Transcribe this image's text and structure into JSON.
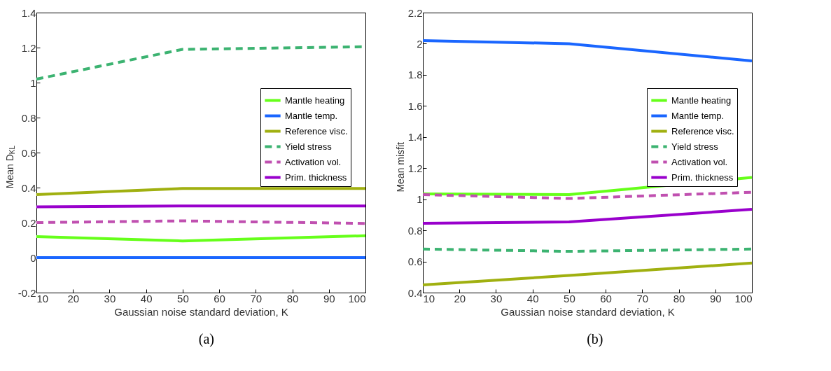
{
  "chart_data": [
    {
      "type": "line",
      "ylabel": "Mean D$_{KL}$",
      "xlabel": "Gaussian noise standard deviation, K",
      "annotations": [
        "(a)"
      ],
      "x": [
        10,
        50,
        100
      ],
      "xlim": [
        10,
        100
      ],
      "xticks": [
        10,
        20,
        30,
        40,
        50,
        60,
        70,
        80,
        90,
        100
      ],
      "ylim": [
        -0.2,
        1.4
      ],
      "yticks": [
        -0.2,
        0,
        0.2,
        0.4,
        0.6,
        0.8,
        1,
        1.2,
        1.4
      ],
      "legend": "right",
      "series": [
        {
          "name": "Mantle heating",
          "color": "#66ff1a",
          "line_style": "solid",
          "values": [
            0.12,
            0.095,
            0.125
          ]
        },
        {
          "name": "Mantle temp.",
          "color": "#1a66ff",
          "line_style": "solid",
          "values": [
            0,
            0,
            0
          ]
        },
        {
          "name": "Reference visc.",
          "color": "#a0b010",
          "line_style": "solid",
          "values": [
            0.36,
            0.395,
            0.395
          ]
        },
        {
          "name": "Yield stress",
          "color": "#3cb371",
          "line_style": "dashed",
          "values": [
            1.02,
            1.19,
            1.205
          ]
        },
        {
          "name": "Activation vol.",
          "color": "#c050b0",
          "line_style": "dashed",
          "values": [
            0.2,
            0.21,
            0.195
          ]
        },
        {
          "name": "Prim. thickness",
          "color": "#9900cc",
          "line_style": "solid",
          "values": [
            0.29,
            0.295,
            0.295
          ]
        }
      ]
    },
    {
      "type": "line",
      "ylabel": "Mean misfit",
      "xlabel": "Gaussian noise standard deviation, K",
      "annotations": [
        "(b)"
      ],
      "x": [
        10,
        50,
        100
      ],
      "xlim": [
        10,
        100
      ],
      "xticks": [
        10,
        20,
        30,
        40,
        50,
        60,
        70,
        80,
        90,
        100
      ],
      "ylim": [
        0.4,
        2.2
      ],
      "yticks": [
        0.4,
        0.6,
        0.8,
        1,
        1.2,
        1.4,
        1.6,
        1.8,
        2,
        2.2
      ],
      "legend": "right",
      "series": [
        {
          "name": "Mantle heating",
          "color": "#66ff1a",
          "line_style": "solid",
          "values": [
            1.035,
            1.03,
            1.14
          ]
        },
        {
          "name": "Mantle temp.",
          "color": "#1a66ff",
          "line_style": "solid",
          "values": [
            2.02,
            2.0,
            1.89
          ]
        },
        {
          "name": "Reference visc.",
          "color": "#a0b010",
          "line_style": "solid",
          "values": [
            0.45,
            0.51,
            0.59
          ]
        },
        {
          "name": "Yield stress",
          "color": "#3cb371",
          "line_style": "dashed",
          "values": [
            0.68,
            0.665,
            0.68
          ]
        },
        {
          "name": "Activation vol.",
          "color": "#c050b0",
          "line_style": "dashed",
          "values": [
            1.03,
            1.005,
            1.045
          ]
        },
        {
          "name": "Prim. thickness",
          "color": "#9900cc",
          "line_style": "solid",
          "values": [
            0.845,
            0.855,
            0.935
          ]
        }
      ]
    }
  ]
}
